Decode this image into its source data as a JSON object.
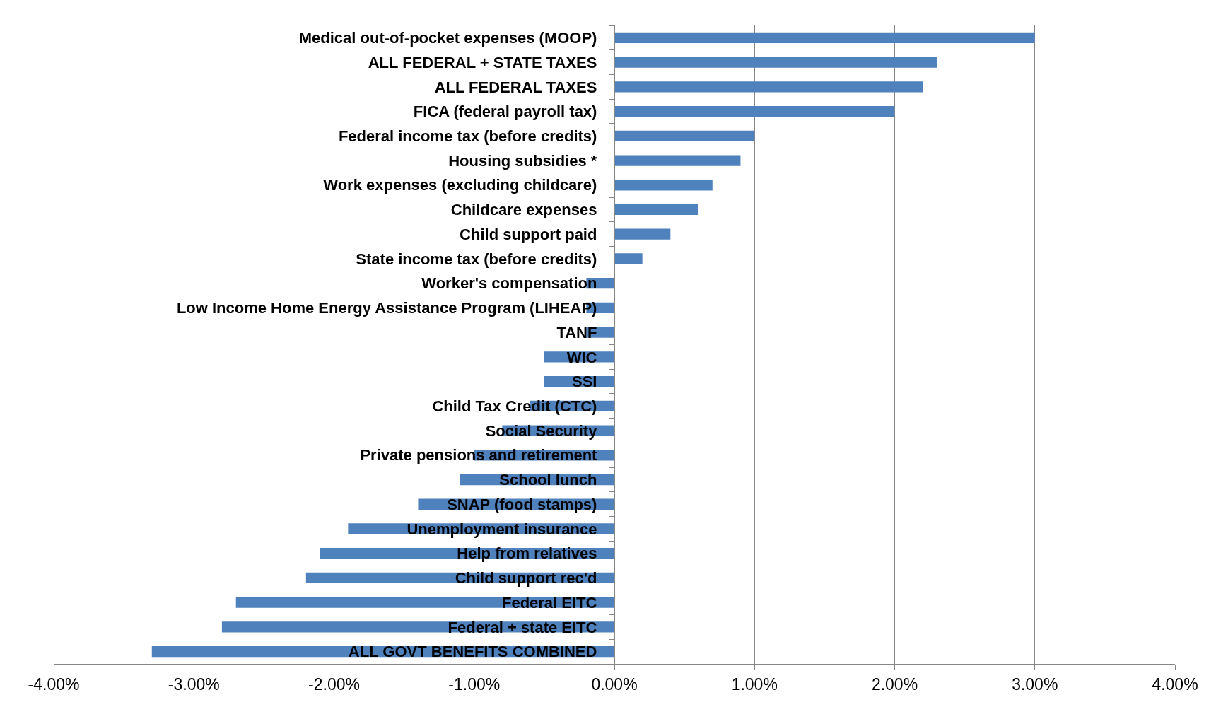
{
  "chart_data": {
    "type": "bar",
    "orientation": "horizontal",
    "color": "#4f81bd",
    "grid": "x",
    "categories": [
      "Medical out-of-pocket expenses (MOOP)",
      "ALL FEDERAL + STATE TAXES",
      "ALL FEDERAL TAXES",
      "FICA (federal payroll tax)",
      "Federal income tax (before credits)",
      "Housing subsidies *",
      "Work expenses (excluding childcare)",
      "Childcare expenses",
      "Child support paid",
      "State income tax (before credits)",
      "Worker's compensation",
      "Low Income Home Energy Assistance Program (LIHEAP)",
      "TANF",
      "WIC",
      "SSI",
      "Child Tax Credit (CTC)",
      "Social Security",
      "Private pensions and retirement",
      "School lunch",
      "SNAP (food stamps)",
      "Unemployment insurance",
      "Help from relatives",
      "Child support rec'd",
      "Federal EITC",
      "Federal + state EITC",
      "ALL GOVT BENEFITS COMBINED"
    ],
    "values": [
      3.0,
      2.3,
      2.2,
      2.0,
      1.0,
      0.9,
      0.7,
      0.6,
      0.4,
      0.2,
      -0.2,
      -0.2,
      -0.2,
      -0.5,
      -0.5,
      -0.6,
      -0.8,
      -1.0,
      -1.1,
      -1.4,
      -1.9,
      -2.1,
      -2.2,
      -2.7,
      -2.8,
      -3.3
    ],
    "xlim": [
      -4,
      4
    ],
    "xticks": [
      {
        "value": -4,
        "label": "-4.00%"
      },
      {
        "value": -3,
        "label": "-3.00%"
      },
      {
        "value": -2,
        "label": "-2.00%"
      },
      {
        "value": -1,
        "label": "-1.00%"
      },
      {
        "value": 0,
        "label": "0.00%"
      },
      {
        "value": 1,
        "label": "1.00%"
      },
      {
        "value": 2,
        "label": "2.00%"
      },
      {
        "value": 3,
        "label": "3.00%"
      },
      {
        "value": 4,
        "label": "4.00%"
      }
    ]
  }
}
